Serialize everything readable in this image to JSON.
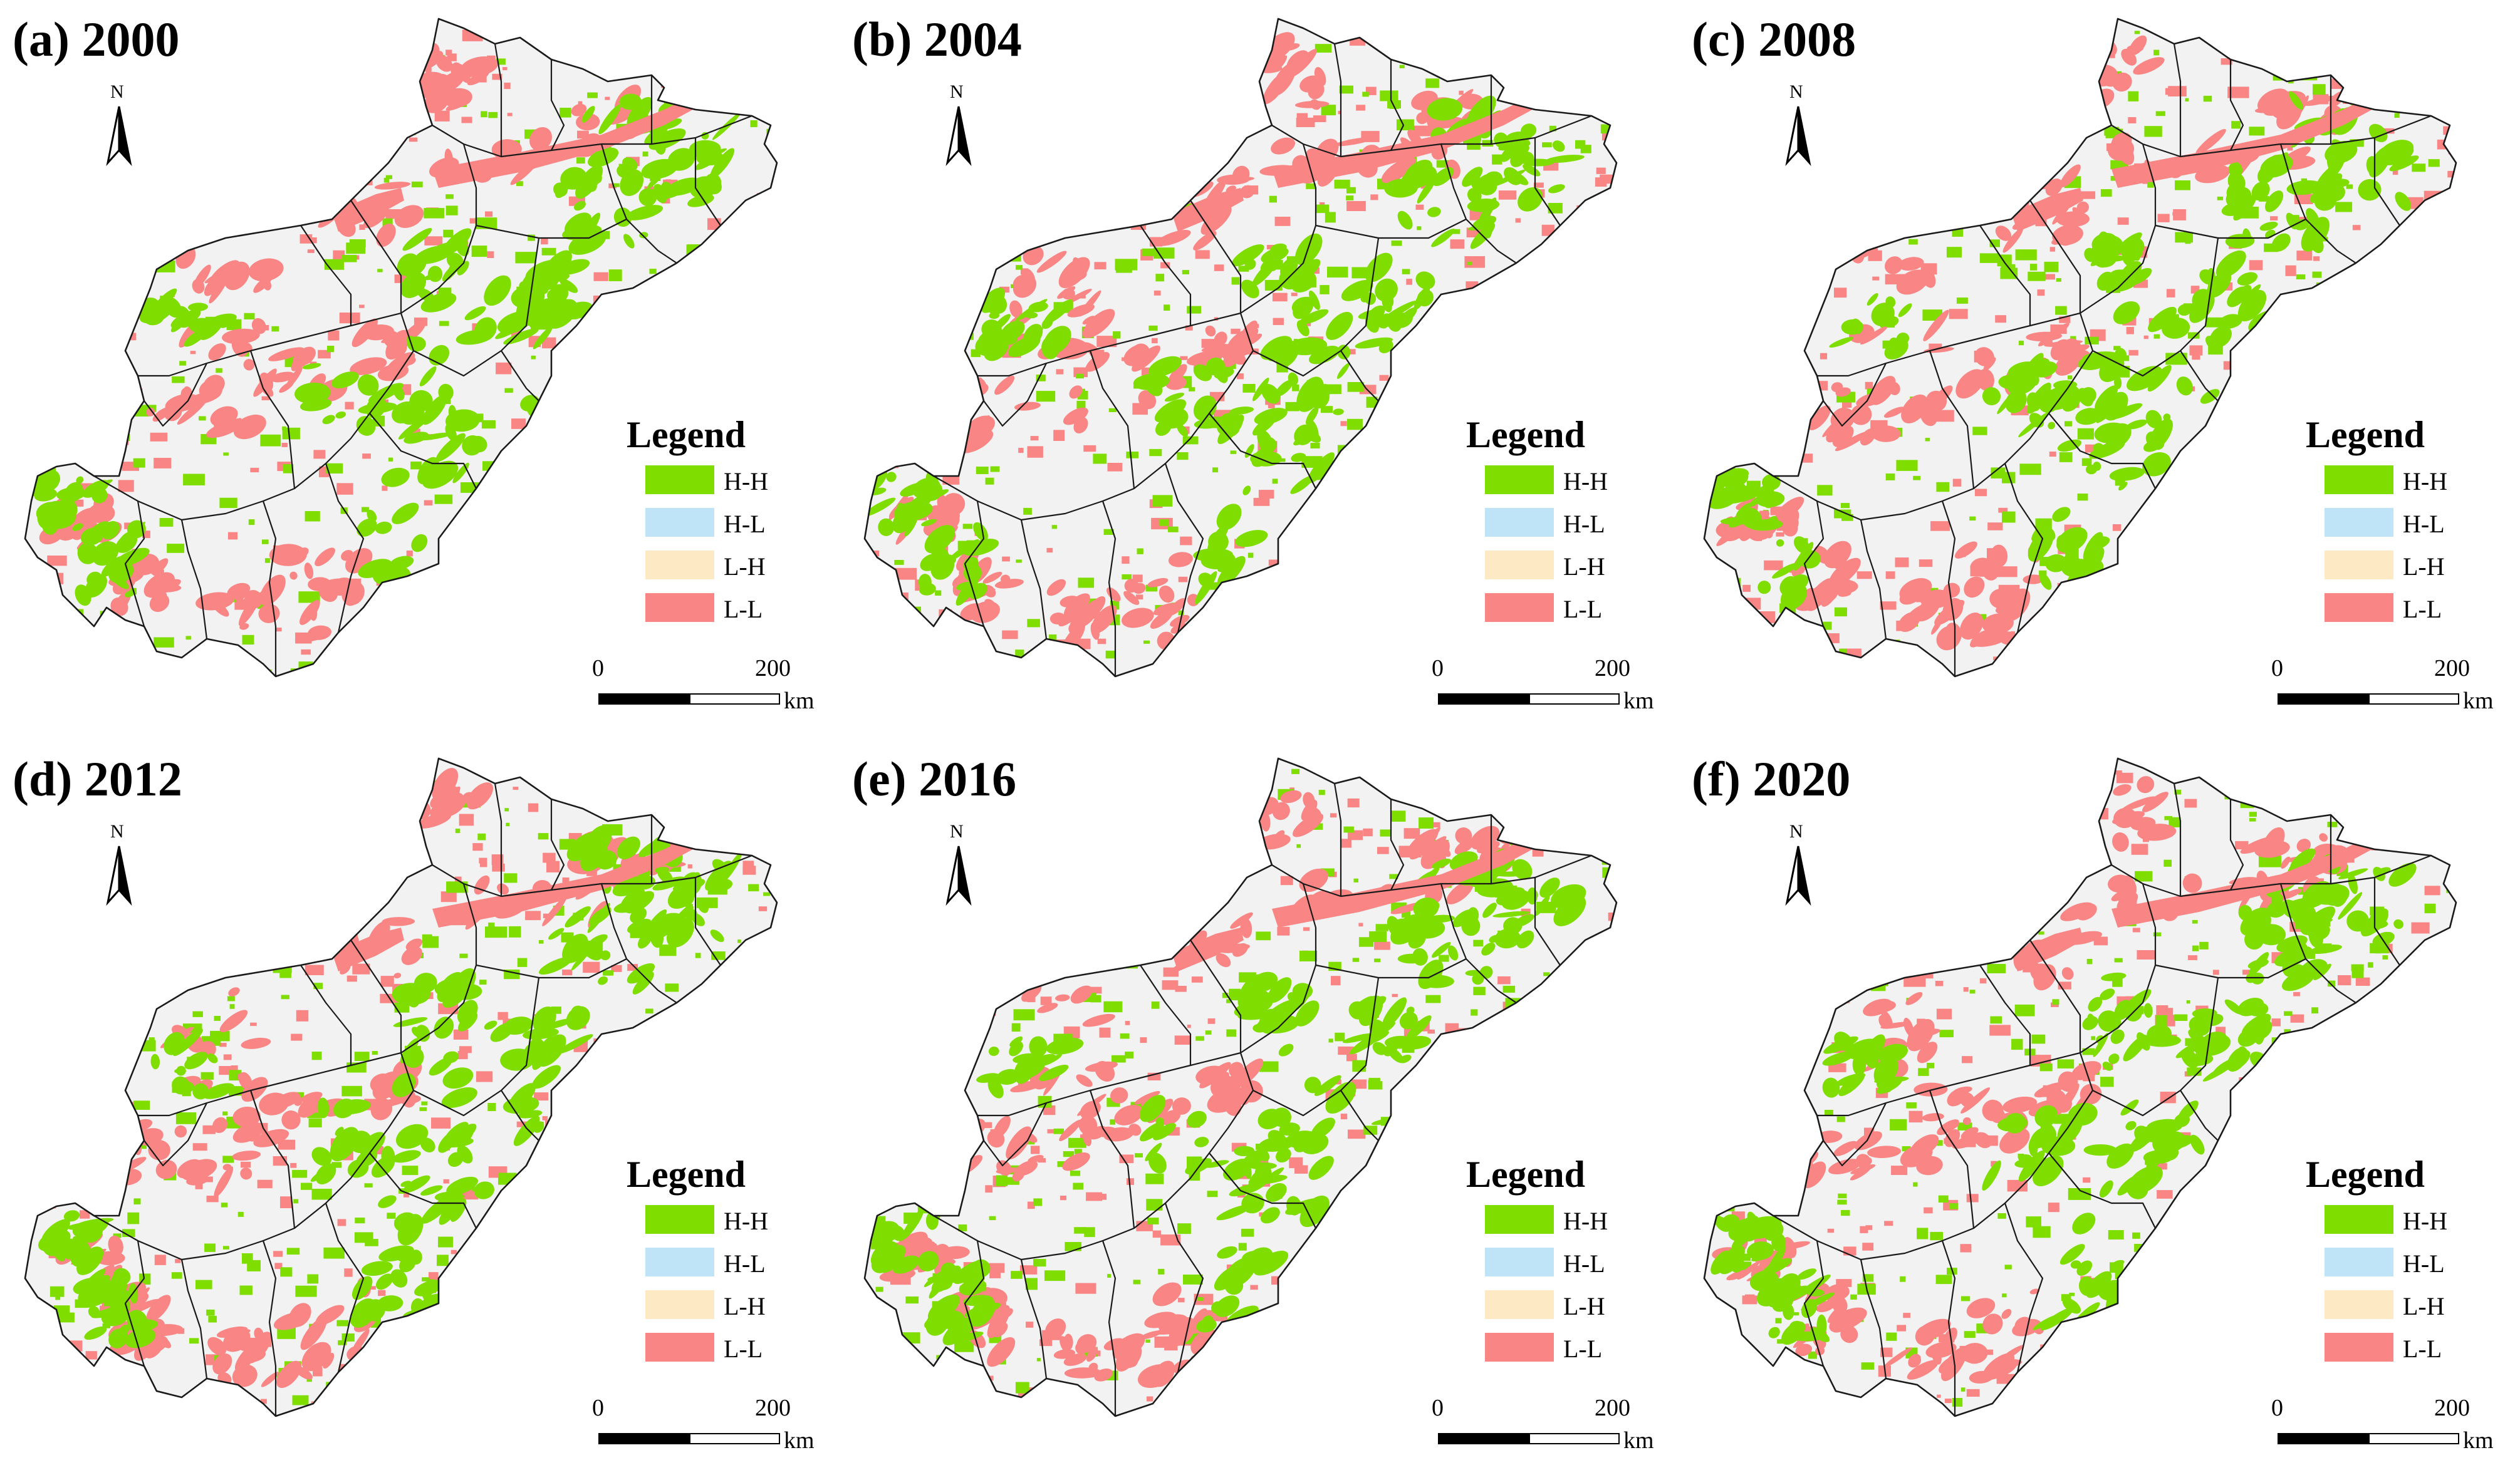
{
  "colors": {
    "HH": "#7fdd00",
    "HL": "#bfe3f7",
    "LH": "#fde9c4",
    "LL": "#f98585",
    "background_region": "#f2f2f2",
    "boundary": "#1a1a1a"
  },
  "legend": {
    "title": "Legend",
    "items": [
      {
        "label": "H-H",
        "color": "#7fdd00"
      },
      {
        "label": "H-L",
        "color": "#bfe3f7"
      },
      {
        "label": "L-H",
        "color": "#fde9c4"
      },
      {
        "label": "L-L",
        "color": "#f98585"
      }
    ]
  },
  "north_arrow": {
    "label": "N"
  },
  "scale_bar": {
    "start": "0",
    "end": "200",
    "unit": "km"
  },
  "panels": [
    {
      "title": "(a) 2000"
    },
    {
      "title": "(b) 2004"
    },
    {
      "title": "(c) 2008"
    },
    {
      "title": "(d) 2012"
    },
    {
      "title": "(e) 2016"
    },
    {
      "title": "(f) 2020"
    }
  ]
}
